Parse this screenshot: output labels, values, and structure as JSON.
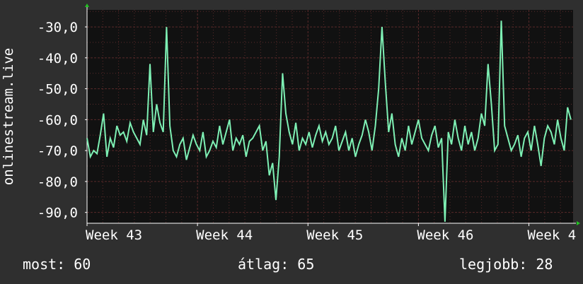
{
  "colors": {
    "background": "#2f2f2f",
    "plot_background": "#111111",
    "series_line": "#7ef0b4",
    "grid": "#5a2a2a",
    "axis": "#ffffff",
    "arrow": "#22c322"
  },
  "stats": {
    "current_label": "most:",
    "current_value": "60",
    "average_label": "átlag:",
    "average_value": "65",
    "best_label": "legjobb:",
    "best_value": "28"
  },
  "chart_data": {
    "type": "line",
    "title": "",
    "xlabel": "",
    "ylabel": "onlinestream.live",
    "ylim": [
      -93.5,
      -24.5
    ],
    "xlim": [
      0,
      4.4
    ],
    "grid": true,
    "y_ticks": [
      {
        "value": -30,
        "label": "-30,0"
      },
      {
        "value": -40,
        "label": "-40,0"
      },
      {
        "value": -50,
        "label": "-50,0"
      },
      {
        "value": -60,
        "label": "-60,0"
      },
      {
        "value": -70,
        "label": "-70,0"
      },
      {
        "value": -80,
        "label": "-80,0"
      },
      {
        "value": -90,
        "label": "-90,0"
      }
    ],
    "x_ticks": [
      {
        "value": 0,
        "label": "Week 43"
      },
      {
        "value": 1,
        "label": "Week 44"
      },
      {
        "value": 2,
        "label": "Week 45"
      },
      {
        "value": 3,
        "label": "Week 46"
      },
      {
        "value": 4,
        "label": "Week 4"
      }
    ],
    "series": [
      {
        "x": [
          0.0,
          0.03,
          0.06,
          0.09,
          0.12,
          0.15,
          0.18,
          0.21,
          0.24,
          0.27,
          0.3,
          0.33,
          0.36,
          0.39,
          0.42,
          0.45,
          0.48,
          0.51,
          0.54,
          0.57,
          0.6,
          0.63,
          0.66,
          0.69,
          0.72,
          0.75,
          0.78,
          0.81,
          0.84,
          0.87,
          0.9,
          0.93,
          0.96,
          0.99,
          1.02,
          1.05,
          1.08,
          1.11,
          1.14,
          1.17,
          1.2,
          1.23,
          1.26,
          1.29,
          1.32,
          1.35,
          1.38,
          1.41,
          1.44,
          1.47,
          1.5,
          1.53,
          1.56,
          1.59,
          1.62,
          1.65,
          1.68,
          1.71,
          1.74,
          1.77,
          1.8,
          1.83,
          1.86,
          1.89,
          1.92,
          1.95,
          1.98,
          2.01,
          2.04,
          2.07,
          2.1,
          2.13,
          2.16,
          2.19,
          2.22,
          2.25,
          2.28,
          2.31,
          2.34,
          2.37,
          2.4,
          2.43,
          2.46,
          2.49,
          2.52,
          2.55,
          2.58,
          2.61,
          2.64,
          2.67,
          2.7,
          2.73,
          2.76,
          2.79,
          2.82,
          2.85,
          2.88,
          2.91,
          2.94,
          2.97,
          3.0,
          3.03,
          3.06,
          3.09,
          3.12,
          3.15,
          3.18,
          3.21,
          3.24,
          3.27,
          3.3,
          3.33,
          3.36,
          3.39,
          3.42,
          3.45,
          3.48,
          3.51,
          3.54,
          3.57,
          3.6,
          3.63,
          3.66,
          3.69,
          3.72,
          3.75,
          3.78,
          3.81,
          3.84,
          3.87,
          3.9,
          3.93,
          3.96,
          3.99,
          4.02,
          4.05,
          4.08,
          4.11,
          4.14,
          4.17,
          4.2,
          4.23,
          4.26,
          4.29,
          4.32,
          4.35,
          4.38
        ],
        "y": [
          -66,
          -72,
          -70,
          -71,
          -65,
          -58,
          -72,
          -66,
          -69,
          -62,
          -65,
          -64,
          -67,
          -61,
          -64,
          -66,
          -68,
          -60,
          -65,
          -42,
          -64,
          -55,
          -61,
          -64,
          -30,
          -62,
          -70,
          -72,
          -68,
          -66,
          -73,
          -69,
          -65,
          -68,
          -70,
          -64,
          -72,
          -70,
          -67,
          -69,
          -62,
          -68,
          -64,
          -60,
          -70,
          -66,
          -68,
          -65,
          -72,
          -67,
          -66,
          -64,
          -62,
          -70,
          -67,
          -78,
          -74,
          -86,
          -72,
          -45,
          -58,
          -64,
          -68,
          -61,
          -70,
          -66,
          -68,
          -64,
          -69,
          -65,
          -62,
          -67,
          -64,
          -68,
          -66,
          -62,
          -70,
          -67,
          -64,
          -70,
          -66,
          -72,
          -68,
          -65,
          -60,
          -64,
          -70,
          -62,
          -50,
          -30,
          -48,
          -64,
          -58,
          -68,
          -72,
          -66,
          -70,
          -62,
          -68,
          -64,
          -60,
          -66,
          -68,
          -70,
          -65,
          -62,
          -69,
          -66,
          -93,
          -64,
          -68,
          -60,
          -66,
          -70,
          -62,
          -68,
          -64,
          -70,
          -66,
          -58,
          -62,
          -42,
          -55,
          -70,
          -68,
          -28,
          -62,
          -66,
          -70,
          -68,
          -65,
          -72,
          -66,
          -64,
          -70,
          -62,
          -68,
          -75,
          -66,
          -62,
          -64,
          -68,
          -60,
          -66,
          -70,
          -56,
          -60
        ]
      }
    ]
  }
}
